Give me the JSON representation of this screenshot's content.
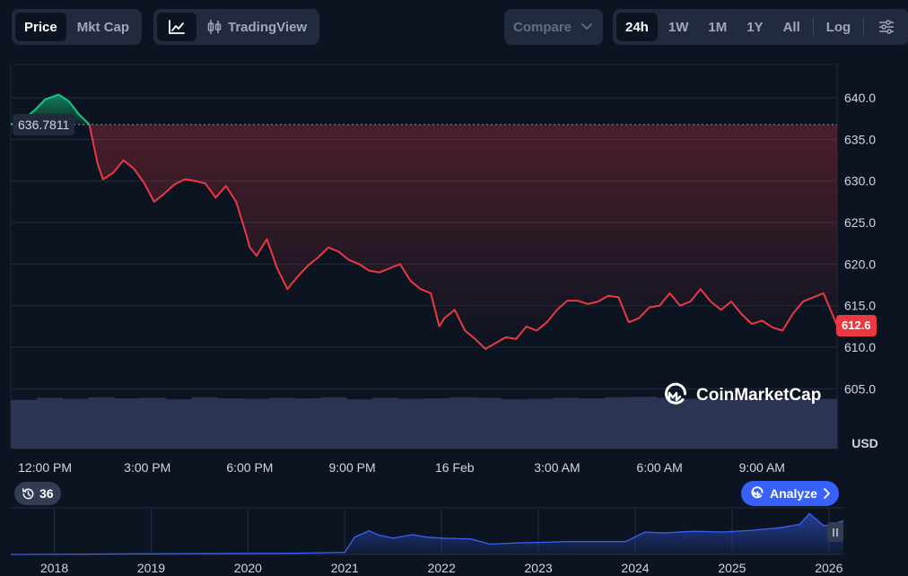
{
  "toolbar": {
    "type_tabs": [
      "Price",
      "Mkt Cap"
    ],
    "active_type": "Price",
    "tradingview_label": "TradingView",
    "compare_label": "Compare",
    "ranges": [
      "24h",
      "1W",
      "1M",
      "1Y",
      "All"
    ],
    "active_range": "24h",
    "log_label": "Log"
  },
  "open_price_label": "636.7811",
  "last_price_label": "612.6",
  "brand_text": "CoinMarketCap",
  "counter_value": "36",
  "analyze_label": "Analyze",
  "colors": {
    "background": "#0d1421",
    "up_line": "#16c784",
    "down_line": "#ea3943",
    "volume": "#2b3553",
    "navigator_line": "#3861fb",
    "accent": "#3861fb"
  },
  "chart_data": [
    {
      "type": "line",
      "title": "",
      "xlabel": "",
      "ylabel": "USD",
      "x_tick_labels": [
        "12:00 PM",
        "3:00 PM",
        "6:00 PM",
        "9:00 PM",
        "16 Feb",
        "3:00 AM",
        "6:00 AM",
        "9:00 AM"
      ],
      "y_ticks": [
        640.0,
        635.0,
        630.0,
        625.0,
        620.0,
        615.0,
        610.0,
        605.0
      ],
      "y_tick_labels": [
        "640.0",
        "635.0",
        "630.0",
        "625.0",
        "620.0",
        "615.0",
        "610.0",
        "605.0"
      ],
      "ylim": [
        604.5,
        644.0
      ],
      "x_start_hour": 11.0,
      "x_end_hour": 35.2,
      "reference_value": 636.7811,
      "last_value": 612.6,
      "series": [
        {
          "name": "",
          "x": [
            11.0,
            11.3,
            11.7,
            12.0,
            12.4,
            12.7,
            13.0,
            13.3,
            13.55,
            13.7,
            14.0,
            14.3,
            14.6,
            14.9,
            15.2,
            15.5,
            15.8,
            16.1,
            16.4,
            16.7,
            17.0,
            17.3,
            17.6,
            17.9,
            18.0,
            18.2,
            18.5,
            18.8,
            19.1,
            19.4,
            19.7,
            20.0,
            20.3,
            20.6,
            20.9,
            21.2,
            21.5,
            21.8,
            22.1,
            22.4,
            22.7,
            23.0,
            23.3,
            23.55,
            23.7,
            24.0,
            24.3,
            24.6,
            24.9,
            25.2,
            25.5,
            25.8,
            26.1,
            26.4,
            26.7,
            27.0,
            27.3,
            27.6,
            27.9,
            28.2,
            28.5,
            28.8,
            29.1,
            29.4,
            29.7,
            30.0,
            30.3,
            30.6,
            30.9,
            31.2,
            31.5,
            31.8,
            32.1,
            32.4,
            32.7,
            33.0,
            33.3,
            33.6,
            33.9,
            34.2,
            34.5,
            34.8,
            35.2
          ],
          "y": [
            636.8,
            637.2,
            638.5,
            639.8,
            640.4,
            639.6,
            638.0,
            636.8,
            632.0,
            630.2,
            631.0,
            632.5,
            631.5,
            629.8,
            627.5,
            628.5,
            629.6,
            630.2,
            630.0,
            629.7,
            628.0,
            629.4,
            627.5,
            623.5,
            622.0,
            621.0,
            623.0,
            619.5,
            617.0,
            618.5,
            619.8,
            620.8,
            622.0,
            621.5,
            620.5,
            620.0,
            619.2,
            619.0,
            619.5,
            620.0,
            618.0,
            617.0,
            616.5,
            612.5,
            613.5,
            614.5,
            612.0,
            611.0,
            609.8,
            610.5,
            611.2,
            611.0,
            612.5,
            612.0,
            613.0,
            614.5,
            615.6,
            615.6,
            615.2,
            615.5,
            616.2,
            616.0,
            613.0,
            613.5,
            614.8,
            615.0,
            616.5,
            615.0,
            615.5,
            617.0,
            615.5,
            614.5,
            615.5,
            614.0,
            612.8,
            613.2,
            612.4,
            612.0,
            614.0,
            615.5,
            616.0,
            616.5,
            612.6
          ]
        }
      ],
      "volume_series": [
        0.92,
        0.96,
        0.94,
        0.97,
        0.95,
        0.96,
        0.93,
        0.97,
        0.95,
        0.94,
        0.96,
        0.95,
        0.97,
        0.93,
        0.96,
        0.94,
        0.95,
        0.97,
        0.96,
        0.93,
        0.94,
        0.96,
        0.95,
        0.97,
        0.98,
        0.96,
        0.94,
        0.95,
        0.97,
        0.96,
        0.95,
        0.94
      ]
    },
    {
      "type": "area",
      "title": "",
      "x_tick_labels": [
        "2018",
        "2019",
        "2020",
        "2021",
        "2022",
        "2023",
        "2024",
        "2025",
        "2026"
      ],
      "x_ticks": [
        2018,
        2019,
        2020,
        2021,
        2022,
        2023,
        2024,
        2025,
        2026
      ],
      "xlim": [
        2017.55,
        2026.15
      ],
      "ylim": [
        0,
        1
      ],
      "series": [
        {
          "name": "",
          "x": [
            2017.55,
            2018.5,
            2019.5,
            2020.5,
            2021.0,
            2021.1,
            2021.25,
            2021.35,
            2021.5,
            2021.7,
            2021.85,
            2022.0,
            2022.3,
            2022.5,
            2022.8,
            2023.0,
            2023.3,
            2023.6,
            2023.9,
            2024.1,
            2024.3,
            2024.6,
            2024.9,
            2025.2,
            2025.5,
            2025.7,
            2025.8,
            2025.95,
            2026.15
          ],
          "y": [
            0.0,
            0.01,
            0.02,
            0.03,
            0.05,
            0.4,
            0.55,
            0.45,
            0.38,
            0.46,
            0.4,
            0.38,
            0.36,
            0.24,
            0.27,
            0.28,
            0.3,
            0.3,
            0.3,
            0.52,
            0.5,
            0.54,
            0.52,
            0.56,
            0.62,
            0.7,
            0.95,
            0.66,
            0.78
          ]
        }
      ]
    }
  ]
}
